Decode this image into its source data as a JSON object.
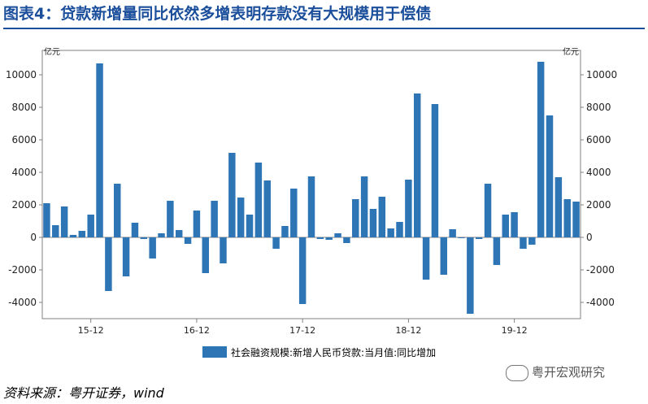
{
  "title": "图表4：贷款新增量同比依然多增表明存款没有大规模用于偿债",
  "source": "资料来源：粤开证券，wind",
  "watermark": "粤开宏观研究",
  "colors": {
    "title": "#1b4f9c",
    "bar": "#2e75b6"
  },
  "chart_data": {
    "type": "bar",
    "ylabel_left": "亿元",
    "ylabel_right": "亿元",
    "ylim": [
      -5000,
      11500
    ],
    "yticks": [
      -4000,
      -2000,
      0,
      2000,
      4000,
      6000,
      8000,
      10000
    ],
    "x_tick_labels": [
      "15-12",
      "16-12",
      "17-12",
      "18-12",
      "19-12"
    ],
    "grid": false,
    "legend_position": "bottom",
    "series": [
      {
        "name": "社会融资规模:新增人民币贷款:当月值:同比增加",
        "values": [
          2100,
          750,
          1900,
          150,
          400,
          1400,
          10700,
          -3300,
          3300,
          -2400,
          900,
          -100,
          -1300,
          250,
          2250,
          450,
          -400,
          1650,
          -2200,
          2250,
          -1600,
          5200,
          2450,
          1400,
          4600,
          3500,
          -700,
          700,
          3000,
          -4100,
          3750,
          -100,
          -150,
          250,
          -350,
          2350,
          3750,
          1750,
          2500,
          550,
          950,
          3550,
          8850,
          -2600,
          8200,
          -2300,
          500,
          -50,
          -4700,
          -100,
          3300,
          -1700,
          1400,
          1550,
          -700,
          -450,
          10800,
          7500,
          3700,
          2350,
          2200
        ]
      }
    ]
  }
}
